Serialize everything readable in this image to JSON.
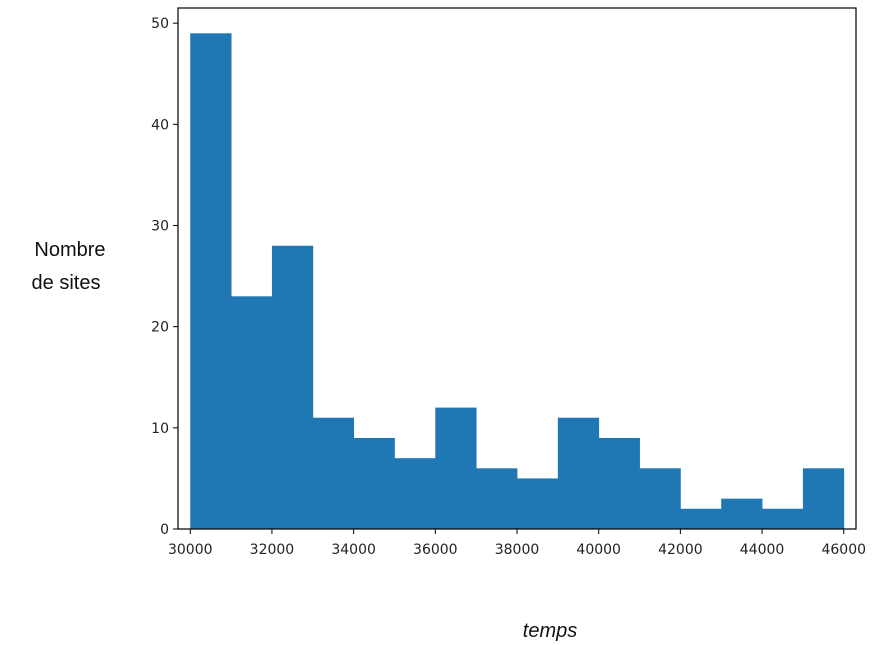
{
  "chart_data": {
    "type": "bar",
    "subtype": "histogram",
    "bin_edges": [
      30000,
      31000,
      32000,
      33000,
      34000,
      35000,
      36000,
      37000,
      38000,
      39000,
      40000,
      41000,
      42000,
      43000,
      44000,
      45000,
      46000
    ],
    "values": [
      49,
      23,
      28,
      11,
      9,
      7,
      12,
      6,
      5,
      11,
      9,
      6,
      2,
      3,
      2,
      6
    ],
    "xlabel": "temps",
    "ylabel_lines": [
      "Nombre",
      "de sites"
    ],
    "xlim": [
      29700,
      46300
    ],
    "ylim": [
      0,
      51.5
    ],
    "x_ticks": [
      30000,
      32000,
      34000,
      36000,
      38000,
      40000,
      42000,
      44000,
      46000
    ],
    "x_tick_labels": [
      "30000",
      "32000",
      "34000",
      "36000",
      "38000",
      "40000",
      "42000",
      "44000",
      "46000"
    ],
    "y_ticks": [
      0,
      10,
      20,
      30,
      40,
      50
    ],
    "y_tick_labels": [
      "0",
      "10",
      "20",
      "30",
      "40",
      "50"
    ],
    "bar_color": "#1f77b4",
    "grid": false
  }
}
